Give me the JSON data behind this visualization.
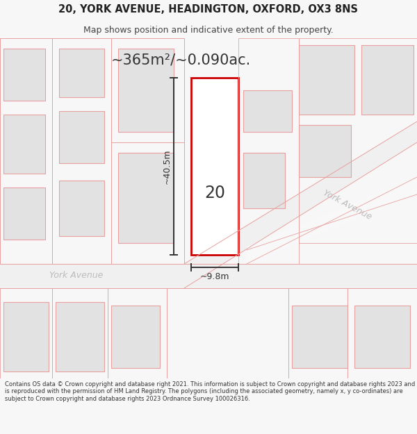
{
  "title_line1": "20, YORK AVENUE, HEADINGTON, OXFORD, OX3 8NS",
  "title_line2": "Map shows position and indicative extent of the property.",
  "area_text": "~365m²/~0.090ac.",
  "width_label": "~9.8m",
  "height_label": "~40.5m",
  "number_label": "20",
  "street_label_h": "York Avenue",
  "street_label_d": "York Avenue",
  "footer_text": "Contains OS data © Crown copyright and database right 2021. This information is subject to Crown copyright and database rights 2023 and is reproduced with the permission of HM Land Registry. The polygons (including the associated geometry, namely x, y co-ordinates) are subject to Crown copyright and database rights 2023 Ordnance Survey 100026316.",
  "bg_color": "#f7f7f7",
  "map_bg": "#ffffff",
  "building_fill": "#e2e2e2",
  "plot_edge": "#e8a0a0",
  "building_edge": "#e8a0a0",
  "road_color": "#f7f7f7",
  "highlight_fill": "#ffffff",
  "highlight_edge": "#cc0000",
  "dim_color": "#333333",
  "text_dark": "#222222",
  "text_gray": "#bbbbbb",
  "footer_color": "#333333"
}
